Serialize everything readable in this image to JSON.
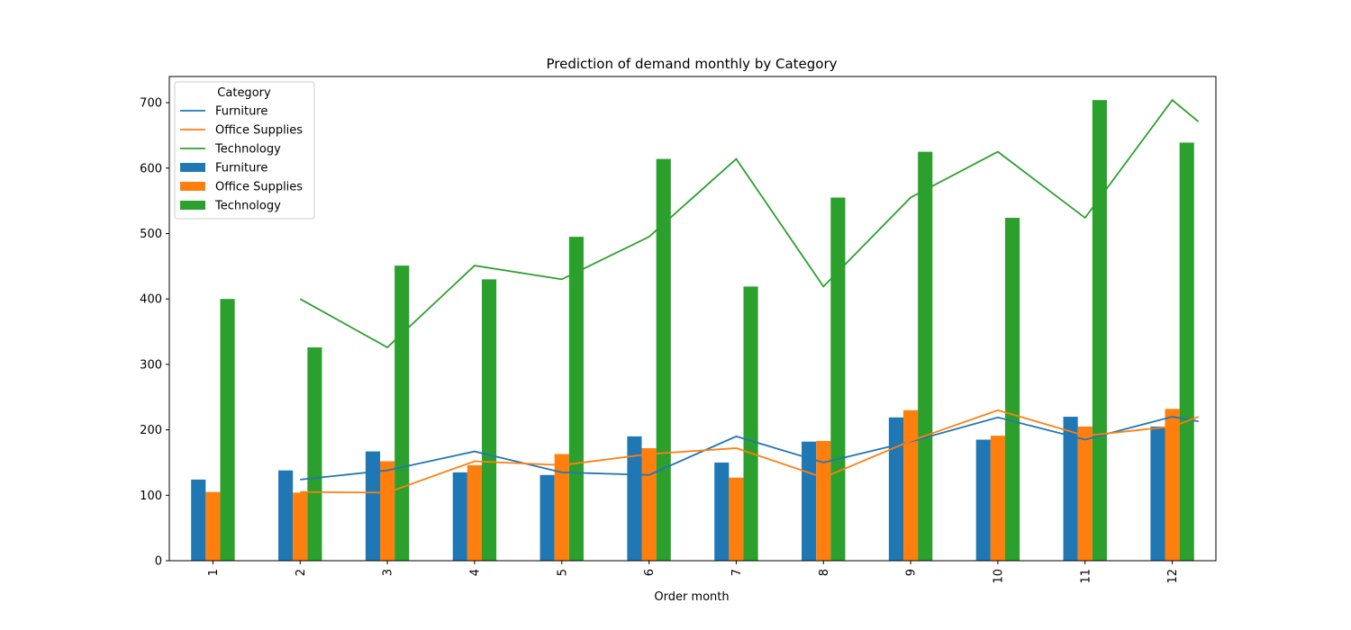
{
  "chart_data": {
    "type": "bar",
    "title": "Prediction of demand monthly by Category",
    "xlabel": "Order month",
    "ylabel": "",
    "ylim": [
      0,
      740
    ],
    "yticks": [
      0,
      100,
      200,
      300,
      400,
      500,
      600,
      700
    ],
    "categories": [
      "1",
      "2",
      "3",
      "4",
      "5",
      "6",
      "7",
      "8",
      "9",
      "10",
      "11",
      "12"
    ],
    "grid": false,
    "legend": {
      "title": "Category",
      "placement": "top-left",
      "entries": [
        {
          "label": "Furniture",
          "kind": "line",
          "color": "#1f77b4"
        },
        {
          "label": "Office Supplies",
          "kind": "line",
          "color": "#ff7f0e"
        },
        {
          "label": "Technology",
          "kind": "line",
          "color": "#2ca02c"
        },
        {
          "label": "Furniture",
          "kind": "bar",
          "color": "#1f77b4"
        },
        {
          "label": "Office Supplies",
          "kind": "bar",
          "color": "#ff7f0e"
        },
        {
          "label": "Technology",
          "kind": "bar",
          "color": "#2ca02c"
        }
      ]
    },
    "bar_series": [
      {
        "name": "Furniture",
        "color": "#1f77b4",
        "values": [
          124,
          138,
          167,
          135,
          131,
          190,
          150,
          182,
          219,
          185,
          220,
          205
        ]
      },
      {
        "name": "Office Supplies",
        "color": "#ff7f0e",
        "values": [
          105,
          104,
          152,
          146,
          163,
          172,
          127,
          183,
          230,
          191,
          205,
          232
        ]
      },
      {
        "name": "Technology",
        "color": "#2ca02c",
        "values": [
          400,
          326,
          451,
          430,
          495,
          614,
          419,
          555,
          625,
          524,
          704,
          639
        ]
      }
    ],
    "line_series": [
      {
        "name": "Furniture",
        "color": "#1f77b4",
        "x": [
          2,
          3,
          4,
          5,
          6,
          7,
          8,
          9,
          10,
          11,
          12,
          12.3
        ],
        "values": [
          124,
          138,
          167,
          135,
          131,
          190,
          150,
          182,
          219,
          185,
          220,
          213
        ]
      },
      {
        "name": "Office Supplies",
        "color": "#ff7f0e",
        "x": [
          2,
          3,
          4,
          5,
          6,
          7,
          8,
          9,
          10,
          11,
          12,
          12.3
        ],
        "values": [
          105,
          104,
          152,
          146,
          163,
          172,
          127,
          183,
          230,
          191,
          205,
          220
        ]
      },
      {
        "name": "Technology",
        "color": "#2ca02c",
        "x": [
          2,
          3,
          4,
          5,
          6,
          7,
          8,
          9,
          10,
          11,
          12,
          12.3
        ],
        "values": [
          400,
          326,
          451,
          430,
          495,
          614,
          419,
          555,
          625,
          524,
          704,
          671
        ]
      }
    ]
  }
}
